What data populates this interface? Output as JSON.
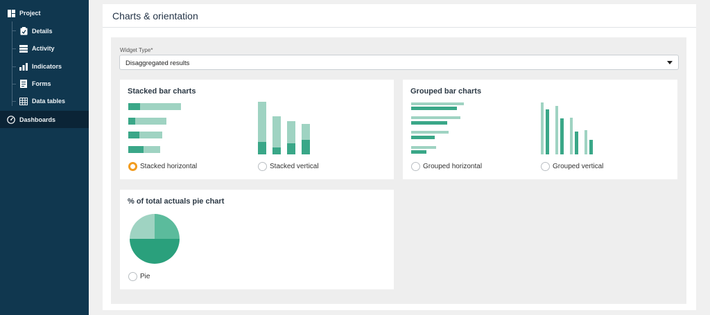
{
  "sidebar": {
    "items": [
      {
        "label": "Project",
        "icon": "project-icon"
      },
      {
        "label": "Details",
        "icon": "clipboard-icon"
      },
      {
        "label": "Activity",
        "icon": "server-icon"
      },
      {
        "label": "Indicators",
        "icon": "bar-chart-icon"
      },
      {
        "label": "Forms",
        "icon": "document-icon"
      },
      {
        "label": "Data tables",
        "icon": "table-icon"
      },
      {
        "label": "Dashboards",
        "icon": "gauge-icon"
      }
    ],
    "active": "Dashboards"
  },
  "page": {
    "title": "Charts & orientation"
  },
  "widget_type": {
    "label": "Widget Type*",
    "value": "Disaggregated results"
  },
  "stacked": {
    "title": "Stacked bar charts",
    "horizontal_label": "Stacked horizontal",
    "vertical_label": "Stacked vertical",
    "selected": "horizontal"
  },
  "grouped": {
    "title": "Grouped bar charts",
    "horizontal_label": "Grouped horizontal",
    "vertical_label": "Grouped vertical"
  },
  "pie": {
    "title": "% of total actuals pie chart",
    "label": "Pie"
  },
  "colors": {
    "sidebar": "#10374f",
    "accent": "#3aa788",
    "accent_light": "#9fd3c2",
    "radio_selected": "#f29c1f"
  }
}
